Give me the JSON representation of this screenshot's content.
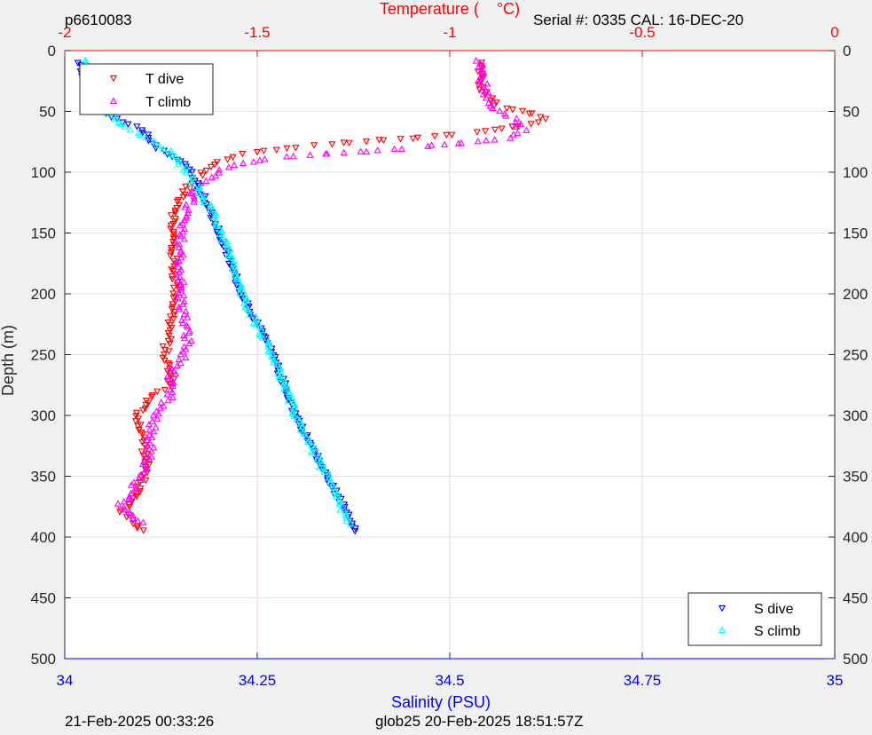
{
  "header": {
    "glider_id": "p6610083",
    "serial": "Serial #: 0335  CAL: 16-DEC-20"
  },
  "footer": {
    "plot_time": "21-Feb-2025 00:33:26",
    "mission_time": "glob25 20-Feb-2025 18:51:57Z"
  },
  "colors": {
    "t_dive": "#ff0000",
    "t_climb": "#ff00ff",
    "s_dive": "#0000ff",
    "s_climb": "#00ffff",
    "temp_axis": "#ff0000",
    "sal_axis": "#0000ff"
  },
  "legend_top": {
    "items": [
      {
        "label": "T dive"
      },
      {
        "label": "T climb"
      }
    ]
  },
  "legend_bottom": {
    "items": [
      {
        "label": "S dive"
      },
      {
        "label": "S climb"
      }
    ]
  },
  "chart_data": {
    "type": "scatter",
    "y_axis": {
      "label": "Depth (m)",
      "range": [
        0,
        500
      ],
      "reversed": true,
      "ticks": [
        "0",
        "50",
        "100",
        "150",
        "200",
        "250",
        "300",
        "350",
        "400",
        "450",
        "500"
      ]
    },
    "x_axis_top": {
      "label": "Temperature (    °C)",
      "range": [
        -2,
        0
      ],
      "ticks": [
        "-2",
        "-1.5",
        "-1",
        "-0.5",
        "0"
      ]
    },
    "x_axis_bottom": {
      "label": "Salinity (PSU)",
      "range": [
        34,
        35
      ],
      "ticks": [
        "34",
        "34.25",
        "34.5",
        "34.75",
        "35"
      ]
    },
    "grid": true,
    "series": [
      {
        "name": "T dive",
        "axis": "temperature",
        "profile": [
          [
            10,
            -0.92
          ],
          [
            30,
            -0.92
          ],
          [
            45,
            -0.88
          ],
          [
            55,
            -0.75
          ],
          [
            60,
            -0.78
          ],
          [
            68,
            -0.95
          ],
          [
            78,
            -1.35
          ],
          [
            85,
            -1.55
          ],
          [
            95,
            -1.62
          ],
          [
            110,
            -1.68
          ],
          [
            125,
            -1.7
          ],
          [
            140,
            -1.72
          ],
          [
            160,
            -1.72
          ],
          [
            200,
            -1.71
          ],
          [
            250,
            -1.74
          ],
          [
            275,
            -1.72
          ],
          [
            285,
            -1.78
          ],
          [
            300,
            -1.81
          ],
          [
            330,
            -1.79
          ],
          [
            350,
            -1.79
          ],
          [
            370,
            -1.83
          ],
          [
            380,
            -1.85
          ],
          [
            390,
            -1.82
          ],
          [
            395,
            -1.8
          ]
        ],
        "jitter": 0.01
      },
      {
        "name": "T climb",
        "axis": "temperature",
        "profile": [
          [
            8,
            -0.92
          ],
          [
            30,
            -0.91
          ],
          [
            45,
            -0.89
          ],
          [
            55,
            -0.84
          ],
          [
            65,
            -0.81
          ],
          [
            72,
            -0.84
          ],
          [
            80,
            -1.1
          ],
          [
            88,
            -1.45
          ],
          [
            95,
            -1.58
          ],
          [
            105,
            -1.63
          ],
          [
            120,
            -1.67
          ],
          [
            145,
            -1.7
          ],
          [
            175,
            -1.7
          ],
          [
            200,
            -1.7
          ],
          [
            240,
            -1.68
          ],
          [
            255,
            -1.7
          ],
          [
            270,
            -1.73
          ],
          [
            285,
            -1.73
          ],
          [
            300,
            -1.77
          ],
          [
            330,
            -1.78
          ],
          [
            360,
            -1.82
          ],
          [
            375,
            -1.86
          ],
          [
            385,
            -1.82
          ],
          [
            390,
            -1.8
          ]
        ],
        "jitter": 0.012
      },
      {
        "name": "S dive",
        "axis": "salinity",
        "profile": [
          [
            10,
            34.02
          ],
          [
            35,
            34.03
          ],
          [
            50,
            34.05
          ],
          [
            65,
            34.1
          ],
          [
            80,
            34.12
          ],
          [
            95,
            34.16
          ],
          [
            120,
            34.18
          ],
          [
            150,
            34.2
          ],
          [
            200,
            34.23
          ],
          [
            250,
            34.27
          ],
          [
            300,
            34.3
          ],
          [
            350,
            34.34
          ],
          [
            395,
            34.38
          ]
        ],
        "jitter": 0.003
      },
      {
        "name": "S climb",
        "axis": "salinity",
        "profile": [
          [
            8,
            34.03
          ],
          [
            40,
            34.04
          ],
          [
            60,
            34.07
          ],
          [
            80,
            34.13
          ],
          [
            100,
            34.16
          ],
          [
            130,
            34.19
          ],
          [
            160,
            34.21
          ],
          [
            200,
            34.23
          ],
          [
            250,
            34.27
          ],
          [
            300,
            34.3
          ],
          [
            350,
            34.34
          ],
          [
            390,
            34.37
          ]
        ],
        "jitter": 0.004
      }
    ]
  }
}
